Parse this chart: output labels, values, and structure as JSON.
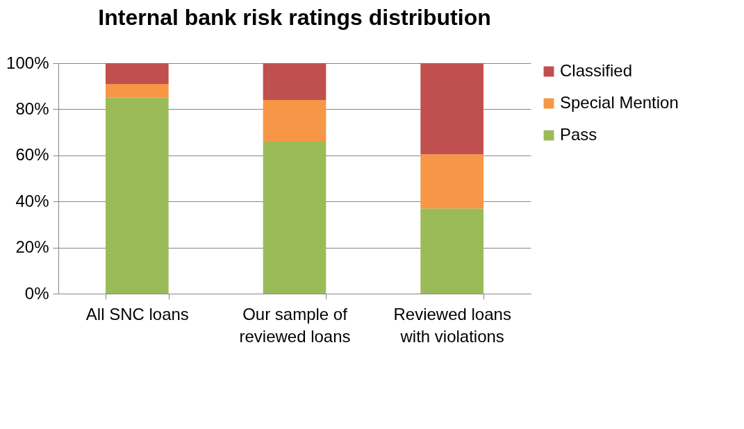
{
  "chart_data": {
    "type": "bar",
    "title": "Internal bank risk ratings distribution",
    "stacked": true,
    "categories": [
      "All SNC loans",
      "Our sample of reviewed loans",
      "Reviewed loans with violations"
    ],
    "series": [
      {
        "name": "Pass",
        "color": "#9bbb59",
        "values": [
          85,
          66,
          37
        ]
      },
      {
        "name": "Special Mention",
        "color": "#f79646",
        "values": [
          6,
          18,
          23.5
        ]
      },
      {
        "name": "Classified",
        "color": "#c0504d",
        "values": [
          9,
          16,
          39.5
        ]
      }
    ],
    "ylim": [
      0,
      100
    ],
    "yticks": [
      {
        "value": 0,
        "label": "0%"
      },
      {
        "value": 20,
        "label": "20%"
      },
      {
        "value": 40,
        "label": "40%"
      },
      {
        "value": 60,
        "label": "60%"
      },
      {
        "value": 80,
        "label": "80%"
      },
      {
        "value": 100,
        "label": "100%"
      }
    ],
    "grid": "y",
    "legend": "right"
  }
}
